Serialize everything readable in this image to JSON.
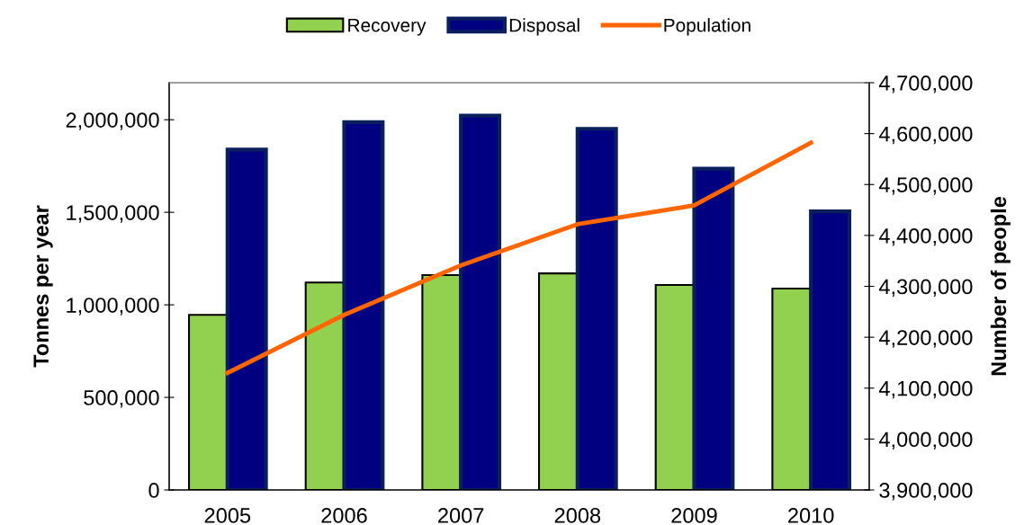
{
  "chart_data": {
    "type": "bar",
    "categories": [
      "2005",
      "2006",
      "2007",
      "2008",
      "2009",
      "2010"
    ],
    "ylabel": "Tonnes per year",
    "y2label": "Number of people",
    "ylim": [
      0,
      2200000
    ],
    "yticks": [
      {
        "value": 0,
        "label": "0"
      },
      {
        "value": 500000,
        "label": "500,000"
      },
      {
        "value": 1000000,
        "label": "1,000,000"
      },
      {
        "value": 1500000,
        "label": "1,500,000"
      },
      {
        "value": 2000000,
        "label": "2,000,000"
      }
    ],
    "y2lim": [
      3900000,
      4700000
    ],
    "y2ticks": [
      {
        "value": 3900000,
        "label": "3,900,000"
      },
      {
        "value": 4000000,
        "label": "4,000,000"
      },
      {
        "value": 4100000,
        "label": "4,100,000"
      },
      {
        "value": 4200000,
        "label": "4,200,000"
      },
      {
        "value": 4300000,
        "label": "4,300,000"
      },
      {
        "value": 4400000,
        "label": "4,400,000"
      },
      {
        "value": 4500000,
        "label": "4,500,000"
      },
      {
        "value": 4600000,
        "label": "4,600,000"
      },
      {
        "value": 4700000,
        "label": "4,700,000"
      }
    ],
    "series": [
      {
        "name": "Recovery",
        "color": "#92d050",
        "values": [
          946000,
          1121000,
          1161000,
          1170000,
          1107000,
          1088000
        ]
      },
      {
        "name": "Disposal",
        "color": "#000080",
        "values": [
          1839000,
          1987000,
          2022000,
          1951000,
          1736000,
          1505000
        ]
      },
      {
        "name": "Population",
        "type": "line",
        "axis": "y2",
        "color": "#ff6600",
        "values": [
          4130000,
          4244000,
          4341000,
          4422000,
          4459000,
          4582000
        ]
      }
    ],
    "grid": false,
    "legend": "top",
    "marker": "none",
    "line_style": "solid"
  }
}
